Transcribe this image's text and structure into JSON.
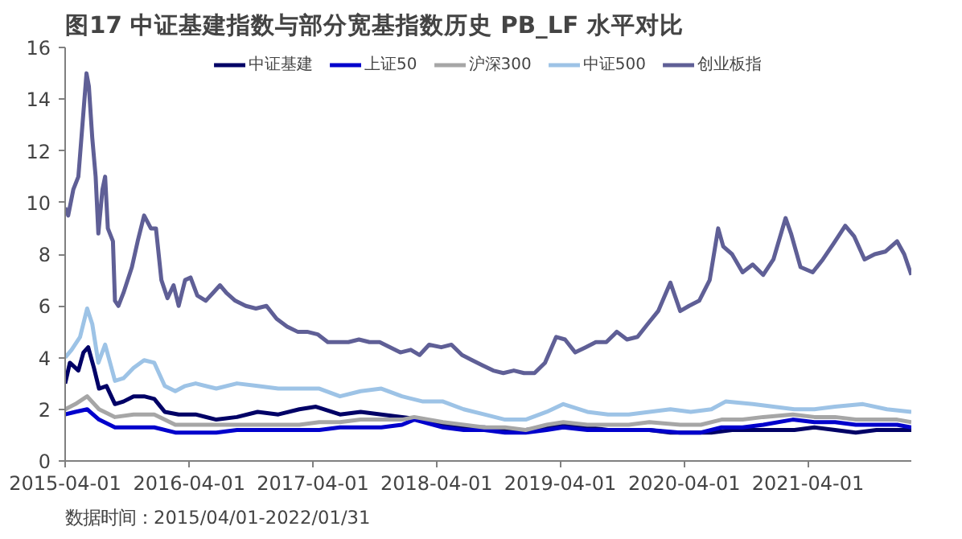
{
  "chart_data": {
    "type": "line",
    "title": "图17 中证基建指数与部分宽基指数历史 PB_LF 水平对比",
    "annotations": [
      "数据时间：2015/04/01-2022/01/31"
    ],
    "xlim": [
      "2015-04-01",
      "2022-01-31"
    ],
    "xticks": [
      "2015-04-01",
      "2016-04-01",
      "2017-04-01",
      "2018-04-01",
      "2019-04-01",
      "2020-04-01",
      "2021-04-01"
    ],
    "ylim": [
      0,
      16
    ],
    "yticks": [
      0,
      2,
      4,
      6,
      8,
      10,
      12,
      14,
      16
    ],
    "grid": false,
    "legend": "top",
    "line_style": "solid",
    "marker": "none",
    "series": [
      {
        "name": "中证基建",
        "color": "#000066",
        "x": [
          "2015-04-01",
          "2015-04-15",
          "2015-05-10",
          "2015-05-25",
          "2015-06-08",
          "2015-06-25",
          "2015-07-10",
          "2015-08-01",
          "2015-08-26",
          "2015-09-20",
          "2015-10-20",
          "2015-11-20",
          "2015-12-20",
          "2016-01-20",
          "2016-03-01",
          "2016-04-20",
          "2016-06-20",
          "2016-08-20",
          "2016-10-20",
          "2016-12-20",
          "2017-02-20",
          "2017-04-10",
          "2017-06-20",
          "2017-08-20",
          "2017-10-20",
          "2017-12-20",
          "2018-02-20",
          "2018-04-20",
          "2018-06-20",
          "2018-08-20",
          "2018-10-20",
          "2018-12-20",
          "2019-02-20",
          "2019-04-10",
          "2019-06-20",
          "2019-08-20",
          "2019-10-20",
          "2019-12-20",
          "2020-02-20",
          "2020-04-20",
          "2020-06-20",
          "2020-08-20",
          "2020-10-20",
          "2020-12-20",
          "2021-02-20",
          "2021-04-20",
          "2021-06-20",
          "2021-08-20",
          "2021-10-20",
          "2021-12-20",
          "2022-01-31"
        ],
        "values": [
          3.0,
          3.8,
          3.5,
          4.2,
          4.4,
          3.6,
          2.8,
          2.9,
          2.2,
          2.3,
          2.5,
          2.5,
          2.4,
          1.9,
          1.8,
          1.8,
          1.6,
          1.7,
          1.9,
          1.8,
          2.0,
          2.1,
          1.8,
          1.9,
          1.8,
          1.7,
          1.6,
          1.4,
          1.3,
          1.3,
          1.2,
          1.2,
          1.3,
          1.4,
          1.3,
          1.2,
          1.2,
          1.2,
          1.1,
          1.1,
          1.1,
          1.2,
          1.2,
          1.2,
          1.2,
          1.3,
          1.2,
          1.1,
          1.2,
          1.2,
          1.2
        ]
      },
      {
        "name": "上证50",
        "color": "#0000cc",
        "x": [
          "2015-04-01",
          "2015-05-01",
          "2015-06-05",
          "2015-07-10",
          "2015-08-26",
          "2015-10-20",
          "2015-12-20",
          "2016-02-20",
          "2016-04-20",
          "2016-06-20",
          "2016-08-20",
          "2016-10-20",
          "2016-12-20",
          "2017-02-20",
          "2017-04-20",
          "2017-06-20",
          "2017-08-20",
          "2017-10-20",
          "2017-12-20",
          "2018-01-25",
          "2018-04-20",
          "2018-06-20",
          "2018-08-20",
          "2018-10-20",
          "2018-12-20",
          "2019-02-20",
          "2019-04-10",
          "2019-06-20",
          "2019-08-20",
          "2019-10-20",
          "2019-12-20",
          "2020-03-20",
          "2020-05-20",
          "2020-07-20",
          "2020-09-20",
          "2020-11-20",
          "2021-02-15",
          "2021-04-20",
          "2021-06-20",
          "2021-08-20",
          "2021-10-20",
          "2021-12-20",
          "2022-01-31"
        ],
        "values": [
          1.8,
          1.9,
          2.0,
          1.6,
          1.3,
          1.3,
          1.3,
          1.1,
          1.1,
          1.1,
          1.2,
          1.2,
          1.2,
          1.2,
          1.2,
          1.3,
          1.3,
          1.3,
          1.4,
          1.6,
          1.3,
          1.2,
          1.2,
          1.1,
          1.1,
          1.2,
          1.3,
          1.2,
          1.2,
          1.2,
          1.2,
          1.1,
          1.1,
          1.3,
          1.3,
          1.4,
          1.6,
          1.5,
          1.5,
          1.4,
          1.4,
          1.4,
          1.3
        ]
      },
      {
        "name": "沪深300",
        "color": "#a6a6a6",
        "x": [
          "2015-04-01",
          "2015-05-01",
          "2015-06-05",
          "2015-07-10",
          "2015-08-26",
          "2015-10-20",
          "2015-12-20",
          "2016-02-20",
          "2016-04-20",
          "2016-06-20",
          "2016-08-20",
          "2016-10-20",
          "2016-12-20",
          "2017-02-20",
          "2017-04-20",
          "2017-06-20",
          "2017-08-20",
          "2017-10-20",
          "2017-12-20",
          "2018-01-25",
          "2018-04-20",
          "2018-06-20",
          "2018-08-20",
          "2018-10-20",
          "2018-12-20",
          "2019-02-20",
          "2019-04-10",
          "2019-06-20",
          "2019-08-20",
          "2019-10-20",
          "2019-12-20",
          "2020-03-20",
          "2020-05-20",
          "2020-07-20",
          "2020-09-20",
          "2020-11-20",
          "2021-02-15",
          "2021-04-20",
          "2021-06-20",
          "2021-08-20",
          "2021-10-20",
          "2021-12-20",
          "2022-01-31"
        ],
        "values": [
          2.0,
          2.2,
          2.5,
          2.0,
          1.7,
          1.8,
          1.8,
          1.4,
          1.4,
          1.4,
          1.4,
          1.4,
          1.4,
          1.4,
          1.5,
          1.5,
          1.6,
          1.6,
          1.6,
          1.7,
          1.5,
          1.4,
          1.3,
          1.3,
          1.2,
          1.4,
          1.5,
          1.4,
          1.4,
          1.4,
          1.5,
          1.4,
          1.4,
          1.6,
          1.6,
          1.7,
          1.8,
          1.7,
          1.7,
          1.6,
          1.6,
          1.6,
          1.5
        ]
      },
      {
        "name": "中证500",
        "color": "#9dc3e6",
        "x": [
          "2015-04-01",
          "2015-04-20",
          "2015-05-15",
          "2015-06-05",
          "2015-06-20",
          "2015-07-08",
          "2015-07-28",
          "2015-08-26",
          "2015-09-20",
          "2015-10-20",
          "2015-11-20",
          "2015-12-20",
          "2016-01-20",
          "2016-02-20",
          "2016-03-20",
          "2016-04-20",
          "2016-06-20",
          "2016-08-20",
          "2016-10-20",
          "2016-12-20",
          "2017-02-20",
          "2017-04-20",
          "2017-06-20",
          "2017-08-20",
          "2017-10-20",
          "2017-12-20",
          "2018-02-20",
          "2018-04-20",
          "2018-06-20",
          "2018-08-20",
          "2018-10-20",
          "2018-12-20",
          "2019-02-20",
          "2019-04-10",
          "2019-06-20",
          "2019-08-20",
          "2019-10-20",
          "2019-12-20",
          "2020-02-20",
          "2020-04-20",
          "2020-06-20",
          "2020-08-01",
          "2020-10-20",
          "2020-12-20",
          "2021-02-20",
          "2021-04-20",
          "2021-06-20",
          "2021-09-10",
          "2021-11-20",
          "2022-01-31"
        ],
        "values": [
          4.0,
          4.3,
          4.8,
          5.9,
          5.3,
          3.8,
          4.5,
          3.1,
          3.2,
          3.6,
          3.9,
          3.8,
          2.9,
          2.7,
          2.9,
          3.0,
          2.8,
          3.0,
          2.9,
          2.8,
          2.8,
          2.8,
          2.5,
          2.7,
          2.8,
          2.5,
          2.3,
          2.3,
          2.0,
          1.8,
          1.6,
          1.6,
          1.9,
          2.2,
          1.9,
          1.8,
          1.8,
          1.9,
          2.0,
          1.9,
          2.0,
          2.3,
          2.2,
          2.1,
          2.0,
          2.0,
          2.1,
          2.2,
          2.0,
          1.9
        ]
      },
      {
        "name": "创业板指",
        "color": "#5f5f96",
        "x": [
          "2015-04-01",
          "2015-04-10",
          "2015-04-25",
          "2015-05-10",
          "2015-05-25",
          "2015-06-03",
          "2015-06-10",
          "2015-06-20",
          "2015-06-30",
          "2015-07-08",
          "2015-07-20",
          "2015-07-28",
          "2015-08-05",
          "2015-08-20",
          "2015-08-26",
          "2015-09-05",
          "2015-09-20",
          "2015-10-15",
          "2015-11-01",
          "2015-11-20",
          "2015-12-10",
          "2015-12-25",
          "2016-01-10",
          "2016-01-28",
          "2016-02-15",
          "2016-03-01",
          "2016-03-20",
          "2016-04-05",
          "2016-04-25",
          "2016-05-20",
          "2016-06-10",
          "2016-07-01",
          "2016-07-20",
          "2016-08-15",
          "2016-09-15",
          "2016-10-15",
          "2016-11-15",
          "2016-12-15",
          "2017-01-15",
          "2017-02-15",
          "2017-03-15",
          "2017-04-15",
          "2017-05-15",
          "2017-06-15",
          "2017-07-15",
          "2017-08-15",
          "2017-09-15",
          "2017-10-15",
          "2017-11-15",
          "2017-12-15",
          "2018-01-15",
          "2018-02-10",
          "2018-03-10",
          "2018-04-15",
          "2018-05-15",
          "2018-06-15",
          "2018-07-15",
          "2018-08-15",
          "2018-09-15",
          "2018-10-15",
          "2018-11-15",
          "2018-12-15",
          "2019-01-15",
          "2019-02-15",
          "2019-03-20",
          "2019-04-15",
          "2019-05-15",
          "2019-06-15",
          "2019-07-15",
          "2019-08-15",
          "2019-09-15",
          "2019-10-15",
          "2019-11-15",
          "2019-12-15",
          "2020-01-15",
          "2020-02-20",
          "2020-03-20",
          "2020-04-15",
          "2020-05-15",
          "2020-06-15",
          "2020-07-10",
          "2020-07-25",
          "2020-08-20",
          "2020-09-20",
          "2020-10-20",
          "2020-11-20",
          "2020-12-20",
          "2021-01-25",
          "2021-02-10",
          "2021-03-10",
          "2021-04-15",
          "2021-05-15",
          "2021-06-15",
          "2021-07-20",
          "2021-08-15",
          "2021-09-15",
          "2021-10-15",
          "2021-11-15",
          "2021-12-20",
          "2022-01-10",
          "2022-01-31"
        ],
        "values": [
          9.8,
          9.5,
          10.5,
          11.0,
          13.5,
          15.0,
          14.5,
          12.5,
          11.0,
          8.8,
          10.5,
          11.0,
          9.0,
          8.5,
          6.2,
          6.0,
          6.5,
          7.5,
          8.5,
          9.5,
          9.0,
          9.0,
          7.0,
          6.3,
          6.8,
          6.0,
          7.0,
          7.1,
          6.4,
          6.2,
          6.5,
          6.8,
          6.5,
          6.2,
          6.0,
          5.9,
          6.0,
          5.5,
          5.2,
          5.0,
          5.0,
          4.9,
          4.6,
          4.6,
          4.6,
          4.7,
          4.6,
          4.6,
          4.4,
          4.2,
          4.3,
          4.1,
          4.5,
          4.4,
          4.5,
          4.1,
          3.9,
          3.7,
          3.5,
          3.4,
          3.5,
          3.4,
          3.4,
          3.8,
          4.8,
          4.7,
          4.2,
          4.4,
          4.6,
          4.6,
          5.0,
          4.7,
          4.8,
          5.3,
          5.8,
          6.9,
          5.8,
          6.0,
          6.2,
          7.0,
          9.0,
          8.3,
          8.0,
          7.3,
          7.6,
          7.2,
          7.8,
          9.4,
          8.8,
          7.5,
          7.3,
          7.8,
          8.4,
          9.1,
          8.7,
          7.8,
          8.0,
          8.1,
          8.5,
          8.0,
          7.2
        ]
      }
    ]
  }
}
